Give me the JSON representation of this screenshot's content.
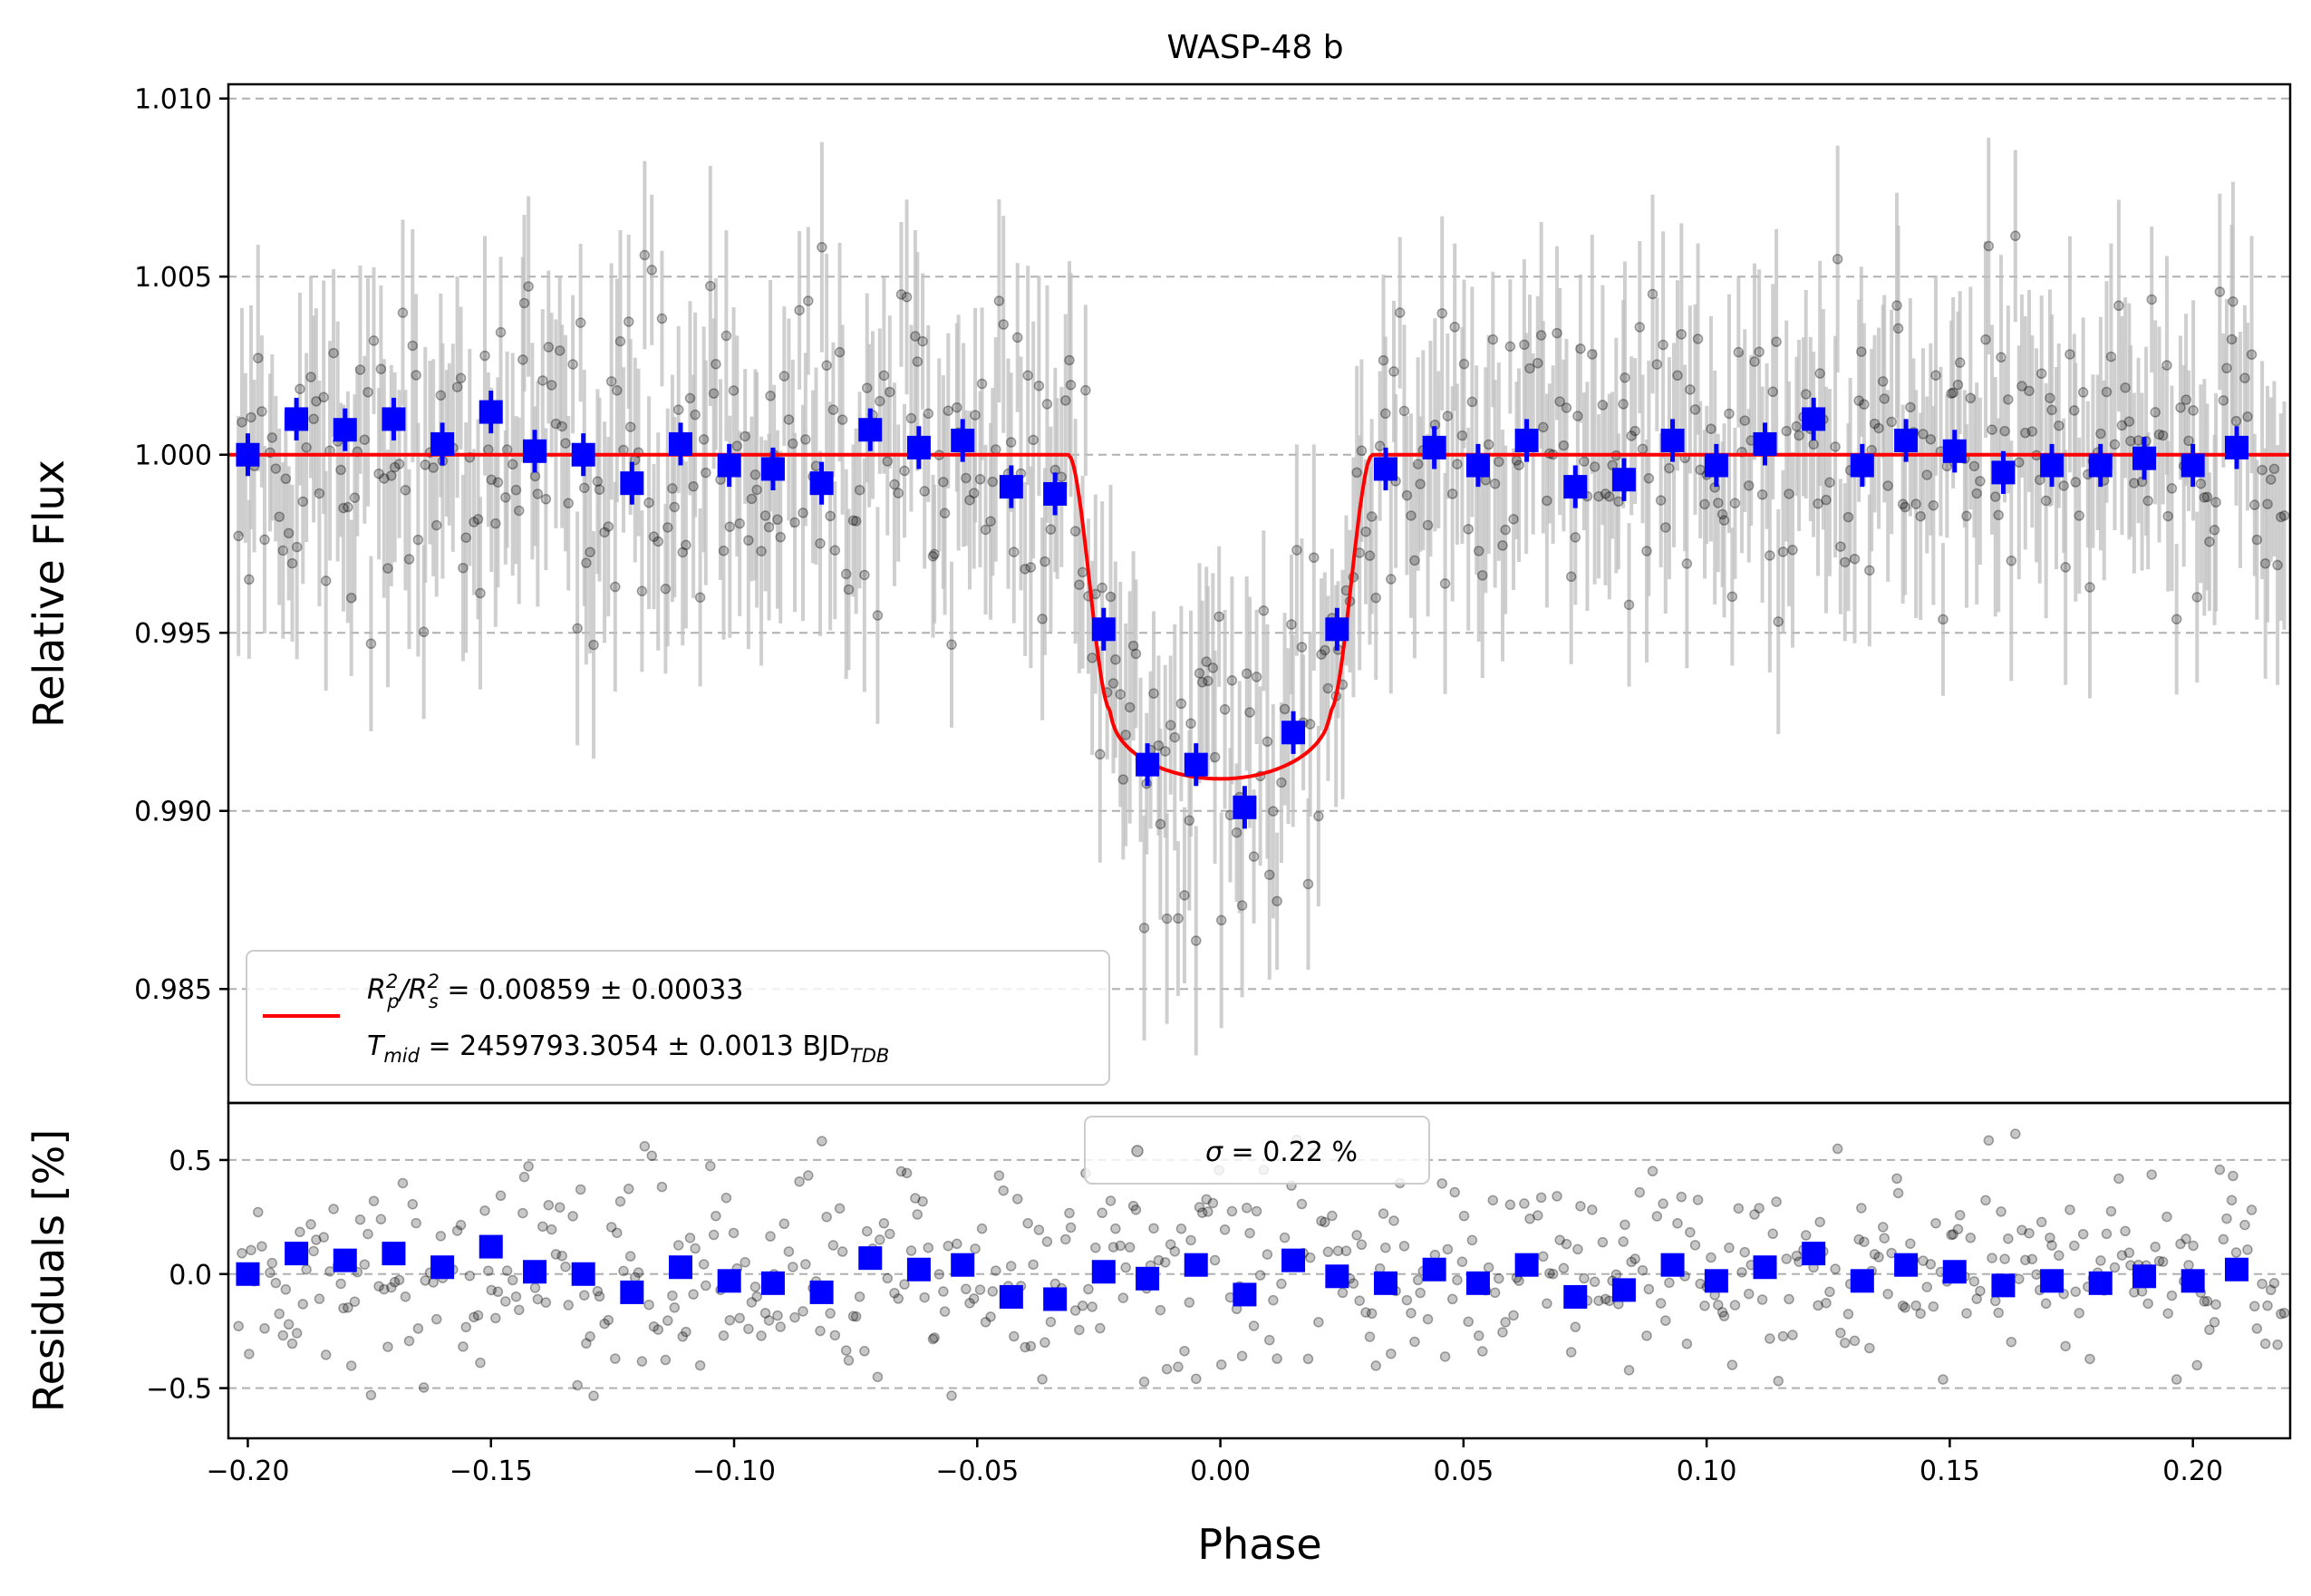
{
  "colors": {
    "model": "#ff0000",
    "binned": "#0000ff",
    "raw": "#000000",
    "errorbar": "#bfbfbf",
    "grid": "#b0b0b0"
  },
  "chart_data": [
    {
      "panel": "top",
      "type": "scatter",
      "title": "WASP-48 b",
      "xlabel": "",
      "ylabel": "Relative Flux",
      "xlim": [
        -0.204,
        0.22
      ],
      "ylim": [
        0.9818,
        1.0104
      ],
      "yticks": [
        0.985,
        0.99,
        0.995,
        1.0,
        1.005,
        1.01
      ],
      "ytick_labels": [
        "0.985",
        "0.990",
        "0.995",
        "1.000",
        "1.005",
        "1.010"
      ],
      "grid": "horizontal dashed",
      "legend": {
        "placement": "lower-left",
        "line1": {
          "prefix": "R",
          "sub1": "p",
          "sup1": "2",
          "mid": "/R",
          "sub2": "s",
          "sup2": "2",
          "suffix": " = 0.00859 ± 0.00033"
        },
        "line2": {
          "prefix": "T",
          "sub": "mid",
          "body": " = 2459793.3054 ± 0.0013 BJD",
          "sub_end": "TDB"
        }
      },
      "model": {
        "name": "transit model",
        "depth": 0.0091,
        "t_contact_outer": 0.0313,
        "t_contact_inner": 0.0225,
        "baseline": 1.0
      },
      "binned_points": {
        "x": [
          -0.2,
          -0.19,
          -0.18,
          -0.17,
          -0.16,
          -0.15,
          -0.141,
          -0.131,
          -0.121,
          -0.111,
          -0.101,
          -0.092,
          -0.082,
          -0.072,
          -0.062,
          -0.053,
          -0.043,
          -0.034,
          -0.024,
          -0.015,
          -0.005,
          0.005,
          0.015,
          0.024,
          0.034,
          0.044,
          0.053,
          0.063,
          0.073,
          0.083,
          0.093,
          0.102,
          0.112,
          0.122,
          0.132,
          0.141,
          0.151,
          0.161,
          0.171,
          0.181,
          0.19,
          0.2,
          0.209
        ],
        "y": [
          1.0,
          1.001,
          1.0007,
          1.001,
          1.0003,
          1.0012,
          1.0001,
          1.0,
          0.9992,
          1.0003,
          0.9997,
          0.9996,
          0.9992,
          1.0007,
          1.0002,
          1.0004,
          0.9991,
          0.9989,
          0.9951,
          0.9913,
          0.9913,
          0.9901,
          0.9922,
          0.9951,
          0.9996,
          1.0002,
          0.9997,
          1.0004,
          0.9991,
          0.9993,
          1.0004,
          0.9997,
          1.0003,
          1.001,
          0.9997,
          1.0004,
          1.0001,
          0.9995,
          0.9997,
          0.9997,
          0.9999,
          0.9997,
          1.0002
        ],
        "yerr": 0.0006
      },
      "raw_points": {
        "n": 600,
        "scatter_sigma": 0.0022,
        "yerr": 0.0025,
        "note": "unbinned photometry, approximated"
      }
    },
    {
      "panel": "bottom",
      "type": "scatter",
      "xlabel": "Phase",
      "ylabel": "Residuals [%]",
      "xlim": [
        -0.204,
        0.22
      ],
      "ylim": [
        -0.72,
        0.75
      ],
      "yticks": [
        -0.5,
        0.0,
        0.5
      ],
      "ytick_labels": [
        "−0.5",
        "0.0",
        "0.5"
      ],
      "xticks": [
        -0.2,
        -0.15,
        -0.1,
        -0.05,
        0.0,
        0.05,
        0.1,
        0.15,
        0.2
      ],
      "xtick_labels": [
        "−0.20",
        "−0.15",
        "−0.10",
        "−0.05",
        "0.00",
        "0.05",
        "0.10",
        "0.15",
        "0.20"
      ],
      "grid": "horizontal dashed",
      "legend": {
        "placement": "top-center",
        "prefix": "σ",
        "text": " = 0.22 %"
      },
      "binned_points": {
        "x": [
          -0.2,
          -0.19,
          -0.18,
          -0.17,
          -0.16,
          -0.15,
          -0.141,
          -0.131,
          -0.121,
          -0.111,
          -0.101,
          -0.092,
          -0.082,
          -0.072,
          -0.062,
          -0.053,
          -0.043,
          -0.034,
          -0.024,
          -0.015,
          -0.005,
          0.005,
          0.015,
          0.024,
          0.034,
          0.044,
          0.053,
          0.063,
          0.073,
          0.083,
          0.093,
          0.102,
          0.112,
          0.122,
          0.132,
          0.141,
          0.151,
          0.161,
          0.171,
          0.181,
          0.19,
          0.2,
          0.209
        ],
        "y": [
          0.0,
          0.09,
          0.06,
          0.09,
          0.03,
          0.12,
          0.01,
          0.0,
          -0.08,
          0.03,
          -0.03,
          -0.04,
          -0.08,
          0.07,
          0.02,
          0.04,
          -0.1,
          -0.11,
          0.01,
          -0.02,
          0.04,
          -0.09,
          0.06,
          -0.01,
          -0.04,
          0.02,
          -0.04,
          0.04,
          -0.1,
          -0.07,
          0.04,
          -0.03,
          0.03,
          0.09,
          -0.03,
          0.04,
          0.01,
          -0.05,
          -0.03,
          -0.04,
          -0.01,
          -0.03,
          0.02
        ]
      },
      "raw_points": {
        "n": 600,
        "scatter_sigma": 0.22
      }
    }
  ]
}
